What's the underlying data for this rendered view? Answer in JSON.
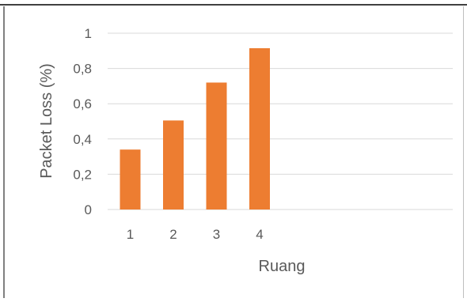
{
  "chart_data": {
    "type": "bar",
    "title": "",
    "xlabel": "Ruang",
    "ylabel": "Packet Loss (%)",
    "categories": [
      "1",
      "2",
      "3",
      "4"
    ],
    "values": [
      0.34,
      0.505,
      0.72,
      0.915
    ],
    "ylim": [
      0,
      1
    ],
    "yticks": [
      "0",
      "0,2",
      "0,4",
      "0,6",
      "0,8",
      "1"
    ],
    "grid": true,
    "legend": "none",
    "colors": {
      "bar": "#ED7D31",
      "grid": "#D9D9D9",
      "text": "#595959",
      "border": "#000000"
    }
  }
}
